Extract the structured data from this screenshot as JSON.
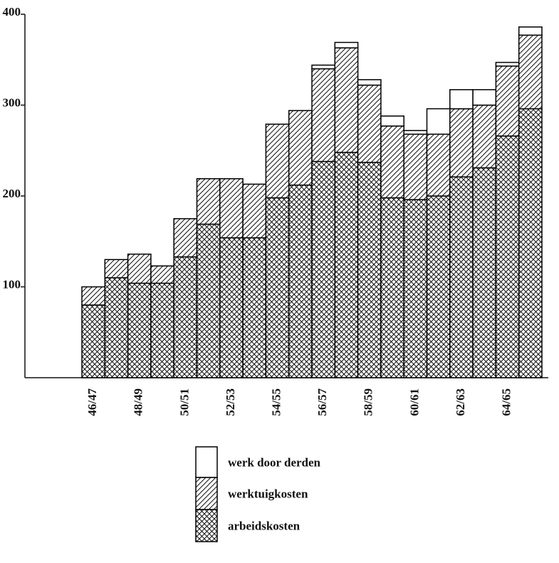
{
  "chart_data": {
    "type": "stacked-bar",
    "categories": [
      "46/47",
      null,
      "48/49",
      null,
      "50/51",
      null,
      "52/53",
      null,
      "54/55",
      null,
      "56/57",
      null,
      "58/59",
      null,
      "60/61",
      null,
      "62/63",
      null,
      "64/65",
      null
    ],
    "series": [
      {
        "name": "arbeidskosten",
        "color": "#000000",
        "pattern": "crosshatch",
        "values": [
          80,
          110,
          104,
          104,
          133,
          169,
          154,
          154,
          198,
          212,
          238,
          248,
          237,
          198,
          196,
          200,
          221,
          231,
          266,
          296
        ]
      },
      {
        "name": "werktuigkosten",
        "color": "#000000",
        "pattern": "diagonal",
        "values": [
          20,
          20,
          32,
          19,
          42,
          50,
          65,
          59,
          81,
          82,
          102,
          115,
          85,
          79,
          72,
          68,
          75,
          69,
          77,
          81
        ]
      },
      {
        "name": "werk door derden",
        "color": "#000000",
        "pattern": "none",
        "values": [
          0,
          0,
          0,
          0,
          0,
          0,
          0,
          0,
          0,
          0,
          4,
          6,
          6,
          11,
          4,
          28,
          21,
          17,
          4,
          9
        ]
      }
    ],
    "ylim": [
      0,
      400
    ],
    "yticks": [
      100,
      200,
      300,
      400
    ]
  }
}
